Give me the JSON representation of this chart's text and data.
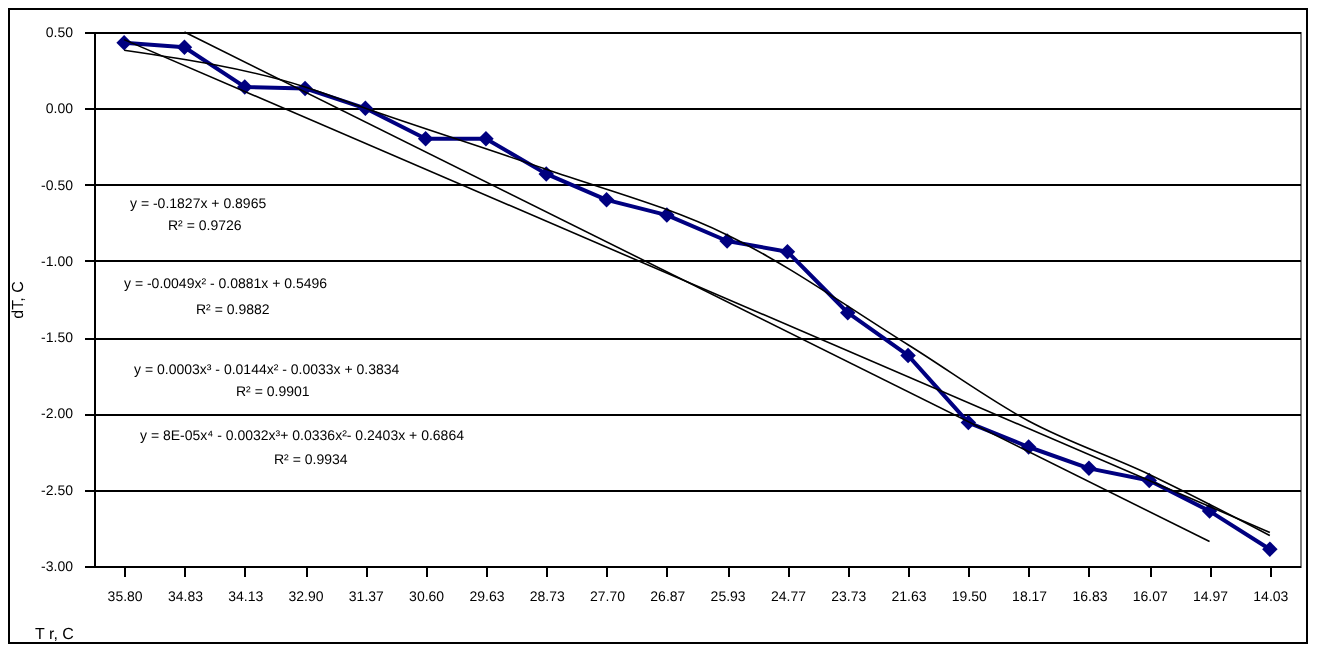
{
  "chart_data": {
    "type": "line",
    "xlabel": "T r, C",
    "ylabel": "dT, C",
    "categories": [
      "35.80",
      "34.83",
      "34.13",
      "32.90",
      "31.37",
      "30.60",
      "29.63",
      "28.73",
      "27.70",
      "26.87",
      "25.93",
      "24.77",
      "23.73",
      "21.63",
      "19.50",
      "18.17",
      "16.83",
      "16.07",
      "14.97",
      "14.03"
    ],
    "series": [
      {
        "color": "#000080",
        "marker": "diamond",
        "values": [
          0.43,
          0.4,
          0.14,
          0.13,
          0.0,
          -0.2,
          -0.2,
          -0.43,
          -0.6,
          -0.7,
          -0.87,
          -0.94,
          -1.34,
          -1.62,
          -2.06,
          -2.22,
          -2.36,
          -2.44,
          -2.64,
          -2.89
        ]
      },
      {
        "type": "line",
        "color": "#000000",
        "marker": "none",
        "x": [
          "34.83",
          "14.97"
        ],
        "values": [
          0.5,
          -2.84
        ]
      },
      {
        "type": "line",
        "color": "#000000",
        "marker": "none",
        "x": [
          "35.80",
          "14.03"
        ],
        "values": [
          0.45,
          -2.78
        ]
      },
      {
        "type": "line",
        "color": "#000000",
        "marker": "none",
        "x": [
          "35.80",
          "32.90",
          "31.37",
          "28.73",
          "25.93",
          "21.63",
          "18.17",
          "16.07",
          "14.03"
        ],
        "values": [
          0.38,
          0.14,
          0.0,
          -0.4,
          -0.83,
          -1.55,
          -2.05,
          -2.4,
          -2.8
        ]
      }
    ],
    "ylim": [
      -3,
      0.5
    ],
    "yticks": [
      {
        "value": -3,
        "label": "-3.00"
      },
      {
        "value": -2.5,
        "label": "-2.50"
      },
      {
        "value": -2,
        "label": "-2.00"
      },
      {
        "value": -1.5,
        "label": "-1.50"
      },
      {
        "value": -1,
        "label": "-1.00"
      },
      {
        "value": -0.5,
        "label": "-0.50"
      },
      {
        "value": 0,
        "label": "0.00"
      },
      {
        "value": 0.5,
        "label": "0.50"
      }
    ],
    "grid": "y",
    "line_style": "solid",
    "annotations": [
      "y = -0.1827x + 0.8965",
      "R² = 0.9726",
      "y = -0.0049x² - 0.0881x + 0.5496",
      "R² = 0.9882",
      "y = 0.0003x³ - 0.0144x² - 0.0033x + 0.3834",
      "R² = 0.9901",
      "y = 8E-05x⁴ - 0.0032x³+ 0.0336x²- 0.2403x + 0.6864",
      "R² = 0.9934"
    ]
  }
}
